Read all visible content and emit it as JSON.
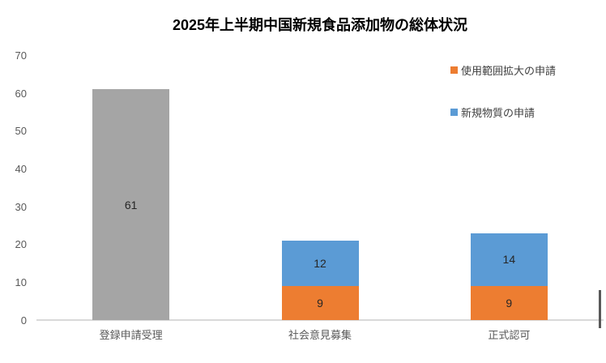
{
  "chart_data": {
    "type": "bar",
    "variant": "stacked",
    "title": "2025年上半期中国新規食品添加物の総体状況",
    "categories": [
      "登録申請受理",
      "社会意見募集",
      "正式認可"
    ],
    "bars": [
      {
        "category": "登録申請受理",
        "segments": [
          {
            "label": "61",
            "value": 61,
            "color": "#A5A5A5"
          }
        ]
      },
      {
        "category": "社会意見募集",
        "segments": [
          {
            "label": "9",
            "value": 9,
            "color": "#ED7D31"
          },
          {
            "label": "12",
            "value": 12,
            "color": "#5B9BD5"
          }
        ]
      },
      {
        "category": "正式認可",
        "segments": [
          {
            "label": "9",
            "value": 9,
            "color": "#ED7D31"
          },
          {
            "label": "14",
            "value": 14,
            "color": "#5B9BD5"
          }
        ]
      }
    ],
    "legend": [
      {
        "label": "使用範囲拡大の申請",
        "color": "#ED7D31"
      },
      {
        "label": "新規物質の申請",
        "color": "#5B9BD5"
      }
    ],
    "y_ticks": [
      0,
      10,
      20,
      30,
      40,
      50,
      60,
      70
    ],
    "ylim": [
      0,
      70
    ],
    "xlabel": "",
    "ylabel": "",
    "grid": false,
    "legend_position": "top-right",
    "colors": {
      "gray_bar": "#A5A5A5",
      "orange_bar": "#ED7D31",
      "blue_bar": "#5B9BD5",
      "axis_line": "#D9D9D9",
      "tick_label": "#595959",
      "data_label": "#262626",
      "scrollbar": "#595959",
      "background": "#FFFFFF"
    }
  }
}
